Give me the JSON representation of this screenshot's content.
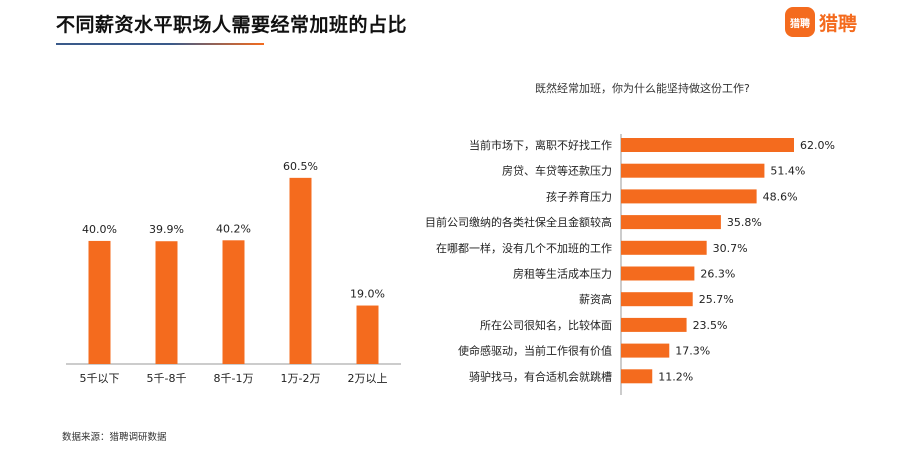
{
  "header": {
    "title": "不同薪资水平职场人需要经常加班的占比",
    "brand_badge": "猎聘",
    "brand_name": "猎聘"
  },
  "colors": {
    "bar": "#f46b1e",
    "title_rule": "#3a5a8a",
    "axis": "#999999"
  },
  "chart_data": [
    {
      "type": "bar",
      "orientation": "vertical",
      "title": "不同薪资水平职场人需要经常加班的占比",
      "categories": [
        "5千以下",
        "5千-8千",
        "8千-1万",
        "1万-2万",
        "2万以上"
      ],
      "values": [
        40.0,
        39.9,
        40.2,
        60.5,
        19.0
      ],
      "value_labels": [
        "40.0%",
        "39.9%",
        "40.2%",
        "60.5%",
        "19.0%"
      ],
      "ylim": [
        0,
        65
      ],
      "grid": false
    },
    {
      "type": "bar",
      "orientation": "horizontal",
      "title": "既然经常加班，你为什么能坚持做这份工作?",
      "categories": [
        "当前市场下，离职不好找工作",
        "房贷、车贷等还款压力",
        "孩子养育压力",
        "目前公司缴纳的各类社保全且金额较高",
        "在哪都一样，没有几个不加班的工作",
        "房租等生活成本压力",
        "薪资高",
        "所在公司很知名，比较体面",
        "使命感驱动，当前工作很有价值",
        "骑驴找马，有合适机会就跳槽"
      ],
      "values": [
        62.0,
        51.4,
        48.6,
        35.8,
        30.7,
        26.3,
        25.7,
        23.5,
        17.3,
        11.2
      ],
      "value_labels": [
        "62.0%",
        "51.4%",
        "48.6%",
        "35.8%",
        "30.7%",
        "26.3%",
        "25.7%",
        "23.5%",
        "17.3%",
        "11.2%"
      ],
      "xlim": [
        0,
        62
      ],
      "grid": false
    }
  ],
  "footer": {
    "source": "数据来源：猎聘调研数据"
  }
}
